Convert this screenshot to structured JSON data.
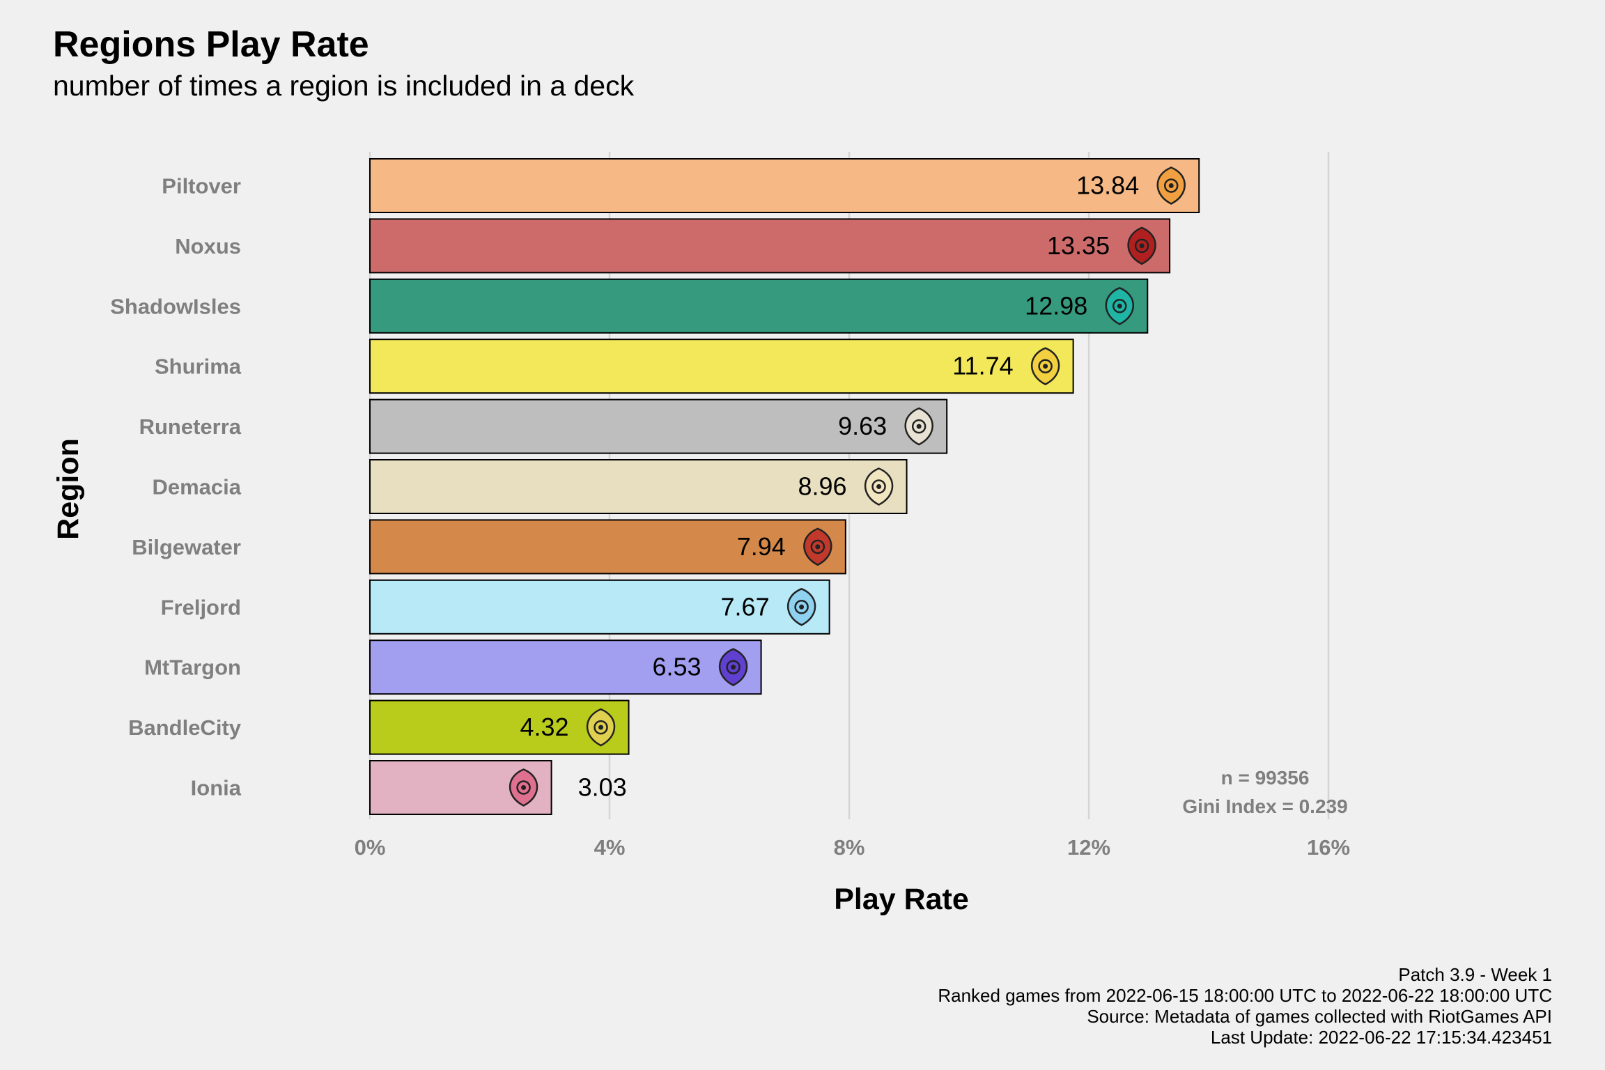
{
  "header": {
    "title": "Regions Play Rate",
    "subtitle": "number of times a region is included in a deck"
  },
  "chart_data": {
    "type": "bar",
    "orientation": "horizontal",
    "xlabel": "Play Rate",
    "ylabel": "Region",
    "xlim": [
      0,
      16
    ],
    "xticks": [
      0,
      4,
      8,
      12,
      16
    ],
    "xtick_labels": [
      "0%",
      "4%",
      "8%",
      "12%",
      "16%"
    ],
    "grid": "vertical major lines",
    "categories": [
      "Piltover",
      "Noxus",
      "ShadowIsles",
      "Shurima",
      "Runeterra",
      "Demacia",
      "Bilgewater",
      "Freljord",
      "MtTargon",
      "BandleCity",
      "Ionia"
    ],
    "values": [
      13.84,
      13.35,
      12.98,
      11.74,
      9.63,
      8.96,
      7.94,
      7.67,
      6.53,
      4.32,
      3.03
    ],
    "value_labels": [
      "13.84",
      "13.35",
      "12.98",
      "11.74",
      "9.63",
      "8.96",
      "7.94",
      "7.67",
      "6.53",
      "4.32",
      "3.03"
    ],
    "colors": [
      "#f6b885",
      "#cd6b6b",
      "#369a7f",
      "#f2e85a",
      "#bebebe",
      "#e8dfc0",
      "#d4894a",
      "#b8e9f7",
      "#a29ef0",
      "#b9cc1c",
      "#e2b1c2"
    ],
    "icons": [
      "piltover-icon",
      "noxus-icon",
      "shadowisles-icon",
      "shurima-icon",
      "runeterra-icon",
      "demacia-icon",
      "bilgewater-icon",
      "freljord-icon",
      "mttargon-icon",
      "bandlecity-icon",
      "ionia-icon"
    ],
    "icon_colors": [
      "#f0a040",
      "#b02020",
      "#1fb5a5",
      "#f3d040",
      "#e8e2d4",
      "#f2e6c0",
      "#c0392b",
      "#8ed2ef",
      "#6040d0",
      "#e0d050",
      "#e07090"
    ],
    "annotations": {
      "n": "n = 99356",
      "gini": "Gini Index = 0.239"
    }
  },
  "caption": {
    "line1": "Patch 3.9 - Week 1",
    "line2": "Ranked games from 2022-06-15 18:00:00 UTC to 2022-06-22 18:00:00 UTC",
    "line3": "Source: Metadata of games collected with RiotGames API",
    "line4": "Last Update: 2022-06-22 17:15:34.423451"
  }
}
